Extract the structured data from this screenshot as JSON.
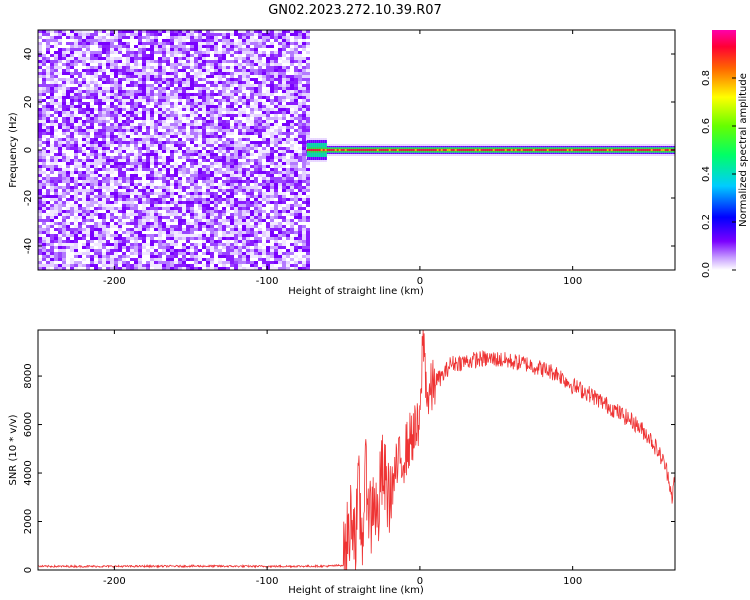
{
  "title": "GN02.2023.272.10.39.R07",
  "chart_data": [
    {
      "type": "heatmap",
      "xlabel": "Height of straight line (km)",
      "ylabel": "Frequency (Hz)",
      "xlim": [
        -250,
        167
      ],
      "ylim": [
        -50,
        50
      ],
      "x_ticks": [
        -200,
        -100,
        0,
        100
      ],
      "y_ticks": [
        -40,
        -20,
        0,
        20,
        40
      ],
      "colorbar": {
        "label": "Normalized spectral amplitude",
        "range": [
          0,
          1
        ],
        "ticks": [
          "0.0",
          "0.2",
          "0.4",
          "0.6",
          "0.8"
        ],
        "tick_values": [
          0.0,
          0.2,
          0.4,
          0.6,
          0.8
        ]
      },
      "noise_region_x": [
        -250,
        -74
      ],
      "signal_frequency_hz": 0,
      "signal_onset_km": -74
    },
    {
      "type": "line",
      "xlabel": "Height of straight line (km)",
      "ylabel": "SNR (10 * v/v)",
      "xlim": [
        -250,
        167
      ],
      "ylim": [
        0,
        9900
      ],
      "x_ticks": [
        -200,
        -100,
        0,
        100
      ],
      "y_ticks": [
        0,
        2000,
        4000,
        6000,
        8000
      ],
      "color": "#ee3333",
      "series": [
        {
          "x": [
            -250,
            -200,
            -150,
            -100,
            -60,
            -50,
            -47,
            -44,
            -42,
            -40,
            -38,
            -35,
            -32,
            -30,
            -28,
            -25,
            -20,
            -15,
            -10,
            -5,
            0,
            2,
            5,
            10,
            15,
            20,
            30,
            40,
            50,
            60,
            70,
            80,
            90,
            100,
            110,
            120,
            130,
            140,
            150,
            155,
            160,
            163,
            165,
            167
          ],
          "y": [
            150,
            150,
            160,
            150,
            160,
            200,
            1400,
            2600,
            1200,
            3200,
            1300,
            4000,
            2000,
            3400,
            1800,
            4000,
            3000,
            4200,
            4800,
            5600,
            5800,
            9800,
            7000,
            7800,
            8000,
            8500,
            8600,
            8700,
            8700,
            8600,
            8500,
            8300,
            8100,
            7600,
            7300,
            6900,
            6500,
            6100,
            5500,
            5000,
            4400,
            3800,
            3000,
            3800
          ]
        }
      ]
    }
  ]
}
